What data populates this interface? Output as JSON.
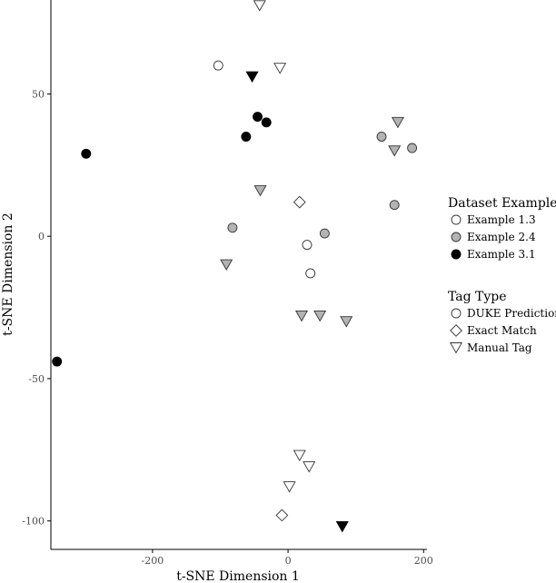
{
  "chart_data": {
    "type": "scatter",
    "xlabel": "t-SNE Dimension 1",
    "ylabel": "t-SNE Dimension 2",
    "xlim": [
      -350,
      205
    ],
    "ylim": [
      -110,
      83
    ],
    "xticks": [
      -200,
      0,
      200
    ],
    "yticks": [
      -100,
      -50,
      0,
      50
    ],
    "grid": false,
    "legend_placement": "right",
    "colors": {
      "Example 1.3": "#ffffff",
      "Example 2.4": "#b3b3b3",
      "Example 3.1": "#000000"
    },
    "legends": [
      {
        "title": "Dataset Example",
        "kind": "fill",
        "entries": [
          "Example 1.3",
          "Example 2.4",
          "Example 3.1"
        ]
      },
      {
        "title": "Tag Type",
        "kind": "shape",
        "entries": [
          {
            "label": "DUKE Prediction",
            "shape": "circle"
          },
          {
            "label": "Exact Match",
            "shape": "diamond"
          },
          {
            "label": "Manual Tag",
            "shape": "triangle-down"
          }
        ]
      }
    ],
    "points": [
      {
        "x": -42,
        "y": 81,
        "dataset": "Example 1.3",
        "tag": "Manual Tag"
      },
      {
        "x": -103,
        "y": 60,
        "dataset": "Example 1.3",
        "tag": "DUKE Prediction"
      },
      {
        "x": -12,
        "y": 59,
        "dataset": "Example 1.3",
        "tag": "Manual Tag"
      },
      {
        "x": 17,
        "y": 12,
        "dataset": "Example 1.3",
        "tag": "Exact Match"
      },
      {
        "x": 28,
        "y": -3,
        "dataset": "Example 1.3",
        "tag": "DUKE Prediction"
      },
      {
        "x": 33,
        "y": -13,
        "dataset": "Example 1.3",
        "tag": "DUKE Prediction"
      },
      {
        "x": 17,
        "y": -77,
        "dataset": "Example 1.3",
        "tag": "Manual Tag"
      },
      {
        "x": 31,
        "y": -81,
        "dataset": "Example 1.3",
        "tag": "Manual Tag"
      },
      {
        "x": 2,
        "y": -88,
        "dataset": "Example 1.3",
        "tag": "Manual Tag"
      },
      {
        "x": -9,
        "y": -98,
        "dataset": "Example 1.3",
        "tag": "Exact Match"
      },
      {
        "x": 162,
        "y": 40,
        "dataset": "Example 2.4",
        "tag": "Manual Tag"
      },
      {
        "x": 138,
        "y": 35,
        "dataset": "Example 2.4",
        "tag": "DUKE Prediction"
      },
      {
        "x": 183,
        "y": 31,
        "dataset": "Example 2.4",
        "tag": "DUKE Prediction"
      },
      {
        "x": 157,
        "y": 30,
        "dataset": "Example 2.4",
        "tag": "Manual Tag"
      },
      {
        "x": -41,
        "y": 16,
        "dataset": "Example 2.4",
        "tag": "Manual Tag"
      },
      {
        "x": 157,
        "y": 11,
        "dataset": "Example 2.4",
        "tag": "DUKE Prediction"
      },
      {
        "x": -82,
        "y": 3,
        "dataset": "Example 2.4",
        "tag": "DUKE Prediction"
      },
      {
        "x": 54,
        "y": 1,
        "dataset": "Example 2.4",
        "tag": "DUKE Prediction"
      },
      {
        "x": -91,
        "y": -10,
        "dataset": "Example 2.4",
        "tag": "Manual Tag"
      },
      {
        "x": 20,
        "y": -28,
        "dataset": "Example 2.4",
        "tag": "Manual Tag"
      },
      {
        "x": 47,
        "y": -28,
        "dataset": "Example 2.4",
        "tag": "Manual Tag"
      },
      {
        "x": 86,
        "y": -30,
        "dataset": "Example 2.4",
        "tag": "Manual Tag"
      },
      {
        "x": -53,
        "y": 56,
        "dataset": "Example 3.1",
        "tag": "Manual Tag"
      },
      {
        "x": -45,
        "y": 42,
        "dataset": "Example 3.1",
        "tag": "DUKE Prediction"
      },
      {
        "x": -32,
        "y": 40,
        "dataset": "Example 3.1",
        "tag": "DUKE Prediction"
      },
      {
        "x": -62,
        "y": 35,
        "dataset": "Example 3.1",
        "tag": "DUKE Prediction"
      },
      {
        "x": -298,
        "y": 29,
        "dataset": "Example 3.1",
        "tag": "DUKE Prediction"
      },
      {
        "x": -341,
        "y": -44,
        "dataset": "Example 3.1",
        "tag": "DUKE Prediction"
      },
      {
        "x": 80,
        "y": -102,
        "dataset": "Example 3.1",
        "tag": "Manual Tag"
      }
    ]
  }
}
